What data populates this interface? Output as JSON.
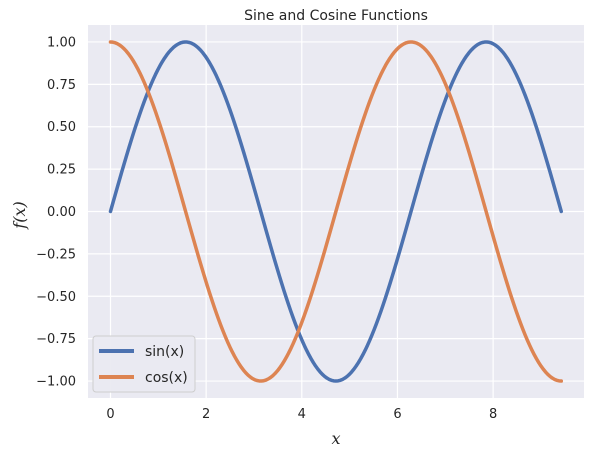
{
  "chart_data": {
    "type": "line",
    "title": "Sine and Cosine Functions",
    "xlabel": "x",
    "ylabel": "f(x)",
    "xlim": [
      -0.47,
      9.9
    ],
    "ylim": [
      -1.1,
      1.1
    ],
    "x_ticks": [
      0,
      2,
      4,
      6,
      8
    ],
    "y_ticks": [
      1.0,
      0.75,
      0.5,
      0.25,
      0.0,
      -0.25,
      -0.5,
      -0.75,
      -1.0
    ],
    "x_tick_labels": [
      "0",
      "2",
      "4",
      "6",
      "8"
    ],
    "y_tick_labels": [
      "1.00",
      "0.75",
      "0.50",
      "0.25",
      "0.00",
      "−0.25",
      "−0.50",
      "−0.75",
      "−1.00"
    ],
    "grid": true,
    "legend_position": "lower-left",
    "series": [
      {
        "name": "sin(x)",
        "color": "#4c72b0",
        "x": [
          0.0,
          0.5,
          1.0,
          1.5708,
          2.0,
          2.5,
          3.0,
          3.5,
          4.0,
          4.7124,
          5.0,
          5.5,
          6.0,
          6.5,
          7.0,
          7.854,
          8.0,
          8.5,
          9.0,
          9.4248
        ],
        "y": [
          0.0,
          0.48,
          0.84,
          1.0,
          0.91,
          0.6,
          0.14,
          -0.35,
          -0.76,
          -1.0,
          -0.96,
          -0.71,
          -0.28,
          0.22,
          0.66,
          1.0,
          0.99,
          0.8,
          0.41,
          0.0
        ]
      },
      {
        "name": "cos(x)",
        "color": "#dd8452",
        "x": [
          0.0,
          0.5,
          1.0,
          1.5,
          2.0,
          2.5,
          3.1416,
          3.5,
          4.0,
          4.5,
          5.0,
          5.5,
          6.2832,
          6.5,
          7.0,
          7.5,
          8.0,
          8.5,
          9.0,
          9.4248
        ],
        "y": [
          1.0,
          0.88,
          0.54,
          0.07,
          -0.42,
          -0.8,
          -1.0,
          -0.94,
          -0.65,
          -0.21,
          0.28,
          0.71,
          1.0,
          0.98,
          0.75,
          0.35,
          -0.15,
          -0.6,
          -0.91,
          -1.0
        ]
      }
    ]
  }
}
